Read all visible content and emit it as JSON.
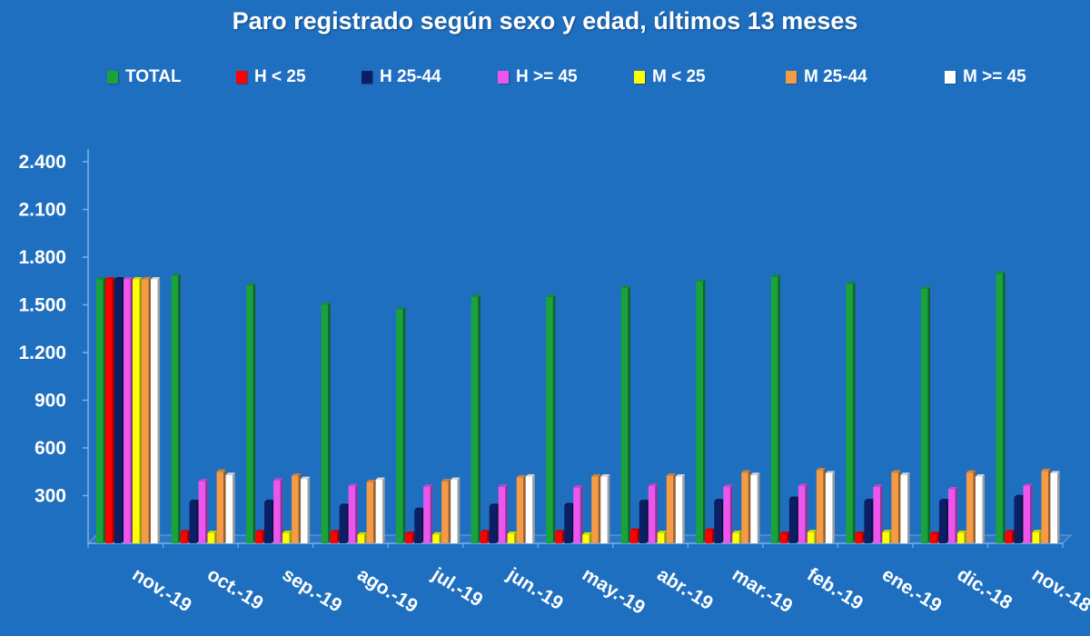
{
  "chart_data": {
    "type": "bar",
    "title": "Paro registrado según sexo y edad, últimos 13 meses",
    "xlabel": "",
    "ylabel": "",
    "ylim": [
      0,
      2400
    ],
    "yticks": [
      300,
      600,
      900,
      1200,
      1500,
      1800,
      2100,
      2400
    ],
    "ytick_labels": [
      "300",
      "600",
      "900",
      "1.200",
      "1.500",
      "1.800",
      "2.100",
      "2.400"
    ],
    "legend_position": "top",
    "grid": false,
    "categories": [
      "nov.-19",
      "oct.-19",
      "sep.-19",
      "ago.-19",
      "jul.-19",
      "jun.-19",
      "may.-19",
      "abr.-19",
      "mar.-19",
      "feb.-19",
      "ene.-19",
      "dic.-18",
      "nov.-18"
    ],
    "series": [
      {
        "name": "TOTAL",
        "color": "#1aa33a",
        "values": [
          1660,
          1680,
          1620,
          1500,
          1470,
          1550,
          1550,
          1605,
          1645,
          1675,
          1630,
          1600,
          1695
        ]
      },
      {
        "name": "H < 25",
        "color": "#ff0000",
        "values": [
          1660,
          70,
          70,
          70,
          60,
          70,
          70,
          80,
          80,
          60,
          60,
          60,
          70
        ]
      },
      {
        "name": "H 25-44",
        "color": "#0b1f66",
        "values": [
          1660,
          260,
          260,
          235,
          210,
          235,
          240,
          260,
          265,
          280,
          265,
          265,
          290
        ]
      },
      {
        "name": "H >= 45",
        "color": "#ee55ee",
        "values": [
          1660,
          390,
          395,
          360,
          355,
          355,
          350,
          360,
          355,
          360,
          355,
          340,
          360
        ]
      },
      {
        "name": "M < 25",
        "color": "#ffff00",
        "values": [
          1660,
          65,
          65,
          55,
          55,
          60,
          55,
          65,
          65,
          70,
          70,
          65,
          70
        ]
      },
      {
        "name": "M 25-44",
        "color": "#f59a45",
        "values": [
          1660,
          450,
          425,
          385,
          390,
          415,
          420,
          425,
          445,
          460,
          445,
          445,
          455
        ]
      },
      {
        "name": "M >= 45",
        "color": "#ffffff",
        "values": [
          1660,
          430,
          405,
          400,
          400,
          420,
          420,
          420,
          430,
          440,
          430,
          420,
          440
        ]
      }
    ]
  }
}
